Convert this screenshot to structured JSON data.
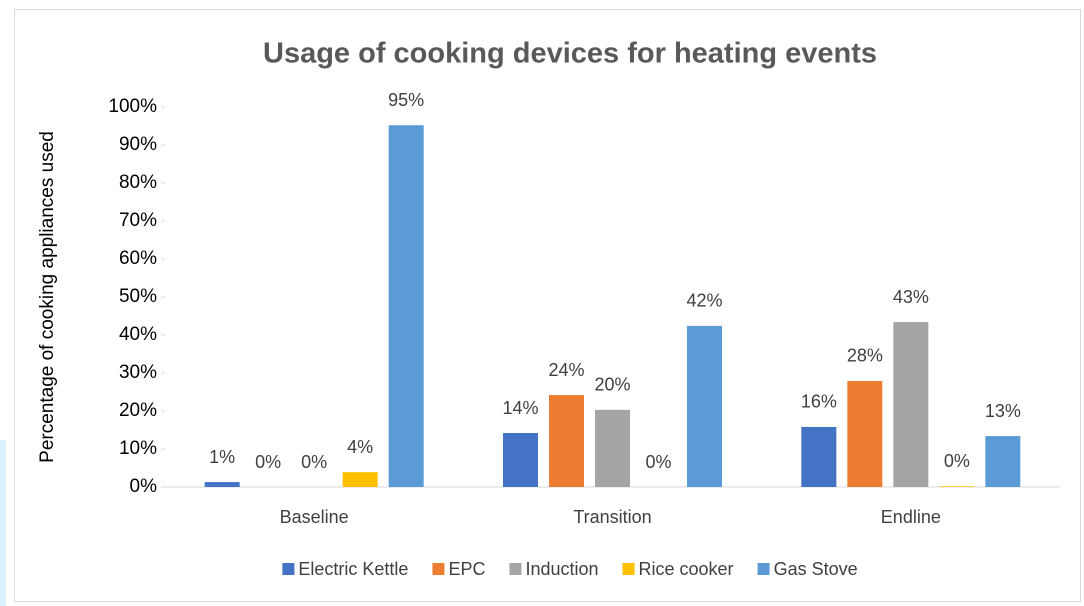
{
  "chart_data": {
    "type": "bar",
    "title": "Usage of cooking devices for heating events",
    "y_label": "Percentage of cooking appliances used",
    "categories": [
      "Baseline",
      "Transition",
      "Endline"
    ],
    "series": [
      {
        "name": "Electric Kettle",
        "color": "#4472c4",
        "values": [
          1.3,
          14.2,
          15.8
        ],
        "value_labels": [
          "1%",
          "14%",
          "16%"
        ]
      },
      {
        "name": "EPC",
        "color": "#ed7d31",
        "values": [
          0,
          24.2,
          27.9
        ],
        "value_labels": [
          "0%",
          "24%",
          "28%"
        ]
      },
      {
        "name": "Induction",
        "color": "#a5a5a5",
        "values": [
          0,
          20.3,
          43.4
        ],
        "value_labels": [
          "0%",
          "20%",
          "43%"
        ]
      },
      {
        "name": "Rice cooker",
        "color": "#ffc000",
        "values": [
          3.9,
          0,
          0.2
        ],
        "value_labels": [
          "4%",
          "0%",
          "0%"
        ]
      },
      {
        "name": "Gas Stove",
        "color": "#5b9bd5",
        "values": [
          95.2,
          42.4,
          13.4
        ],
        "value_labels": [
          "95%",
          "42%",
          "13%"
        ]
      }
    ],
    "ylim": [
      0,
      100
    ],
    "yticks": [
      {
        "value": 0,
        "label": "0%"
      },
      {
        "value": 10,
        "label": "10%"
      },
      {
        "value": 20,
        "label": "20%"
      },
      {
        "value": 30,
        "label": "30%"
      },
      {
        "value": 40,
        "label": "40%"
      },
      {
        "value": 50,
        "label": "50%"
      },
      {
        "value": 60,
        "label": "60%"
      },
      {
        "value": 70,
        "label": "70%"
      },
      {
        "value": 80,
        "label": "80%"
      },
      {
        "value": 90,
        "label": "90%"
      },
      {
        "value": 100,
        "label": "100%"
      }
    ],
    "legend": "bottom"
  }
}
